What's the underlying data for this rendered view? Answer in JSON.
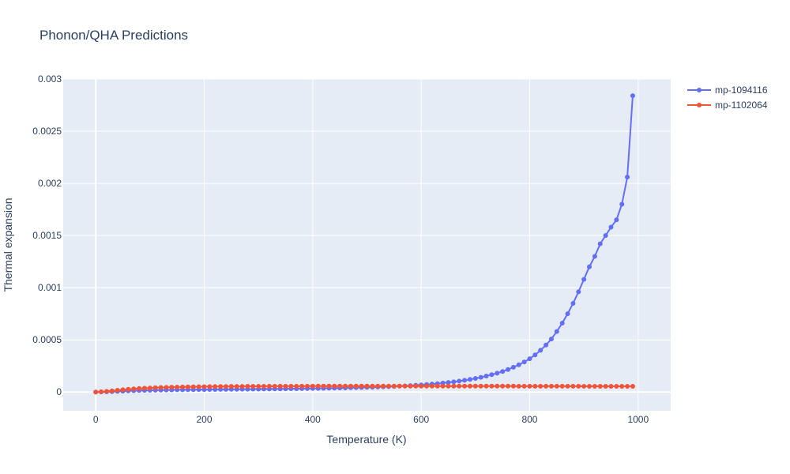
{
  "chart_data": {
    "type": "line",
    "title": "Phonon/QHA Predictions",
    "xlabel": "Temperature (K)",
    "ylabel": "Thermal expansion",
    "xlim": [
      -60,
      1060
    ],
    "ylim": [
      -0.00018,
      0.003
    ],
    "x_ticks": [
      0,
      200,
      400,
      600,
      800,
      1000
    ],
    "x_tick_labels": [
      "0",
      "200",
      "400",
      "600",
      "800",
      "1000"
    ],
    "y_ticks": [
      0,
      0.0005,
      0.001,
      0.0015,
      0.002,
      0.0025,
      0.003
    ],
    "y_tick_labels": [
      "0",
      "0.0005",
      "0.001",
      "0.0015",
      "0.002",
      "0.0025",
      "0.003"
    ],
    "grid": true,
    "legend_position": "top-right",
    "x": [
      0,
      10,
      20,
      30,
      40,
      50,
      60,
      70,
      80,
      90,
      100,
      110,
      120,
      130,
      140,
      150,
      160,
      170,
      180,
      190,
      200,
      210,
      220,
      230,
      240,
      250,
      260,
      270,
      280,
      290,
      300,
      310,
      320,
      330,
      340,
      350,
      360,
      370,
      380,
      390,
      400,
      410,
      420,
      430,
      440,
      450,
      460,
      470,
      480,
      490,
      500,
      510,
      520,
      530,
      540,
      550,
      560,
      570,
      580,
      590,
      600,
      610,
      620,
      630,
      640,
      650,
      660,
      670,
      680,
      690,
      700,
      710,
      720,
      730,
      740,
      750,
      760,
      770,
      780,
      790,
      800,
      810,
      820,
      830,
      840,
      850,
      860,
      870,
      880,
      890,
      900,
      910,
      920,
      930,
      940,
      950,
      960,
      970,
      980,
      990
    ],
    "series": [
      {
        "name": "mp-1094116",
        "color": "#636efa",
        "values": [
          0,
          5e-07,
          2e-06,
          4e-06,
          6.5e-06,
          8.5e-06,
          1.1e-05,
          1.28e-05,
          1.45e-05,
          1.6e-05,
          1.72e-05,
          1.82e-05,
          1.91e-05,
          1.99e-05,
          2.06e-05,
          2.12e-05,
          2.18e-05,
          2.23e-05,
          2.28e-05,
          2.33e-05,
          2.38e-05,
          2.42e-05,
          2.47e-05,
          2.51e-05,
          2.56e-05,
          2.6e-05,
          2.65e-05,
          2.69e-05,
          2.74e-05,
          2.79e-05,
          2.84e-05,
          2.89e-05,
          2.94e-05,
          3e-05,
          3.05e-05,
          3.11e-05,
          3.17e-05,
          3.24e-05,
          3.3e-05,
          3.37e-05,
          3.45e-05,
          3.52e-05,
          3.61e-05,
          3.69e-05,
          3.79e-05,
          3.88e-05,
          3.99e-05,
          4.1e-05,
          4.22e-05,
          4.35e-05,
          4.49e-05,
          4.65e-05,
          4.81e-05,
          4.99e-05,
          5.19e-05,
          5.4e-05,
          5.63e-05,
          5.89e-05,
          6.17e-05,
          6.48e-05,
          6.82e-05,
          7.19e-05,
          7.61e-05,
          8.07e-05,
          8.57e-05,
          9.14e-05,
          9.77e-05,
          0.000105,
          0.000112,
          0.000121,
          0.00013,
          0.000141,
          0.000153,
          0.000166,
          0.000181,
          0.000197,
          0.000216,
          0.000237,
          0.000261,
          0.000288,
          0.000319,
          0.000356,
          0.0004,
          0.00045,
          0.000508,
          0.00058,
          0.00066,
          0.00075,
          0.00085,
          0.00096,
          0.00108,
          0.0012,
          0.0013,
          0.00142,
          0.0015,
          0.00158,
          0.00165,
          0.0018,
          0.00206,
          0.00284
        ]
      },
      {
        "name": "mp-1102064",
        "color": "#ef553b",
        "values": [
          0,
          2.5e-06,
          6.5e-06,
          1.1e-05,
          1.65e-05,
          2.15e-05,
          2.6e-05,
          3e-05,
          3.35e-05,
          3.65e-05,
          3.9e-05,
          4.12e-05,
          4.31e-05,
          4.47e-05,
          4.61e-05,
          4.73e-05,
          4.84e-05,
          4.93e-05,
          5.01e-05,
          5.08e-05,
          5.14e-05,
          5.19e-05,
          5.24e-05,
          5.28e-05,
          5.32e-05,
          5.36e-05,
          5.39e-05,
          5.42e-05,
          5.45e-05,
          5.47e-05,
          5.49e-05,
          5.51e-05,
          5.53e-05,
          5.55e-05,
          5.56e-05,
          5.57e-05,
          5.58e-05,
          5.59e-05,
          5.6e-05,
          5.61e-05,
          5.62e-05,
          5.63e-05,
          5.63e-05,
          5.64e-05,
          5.64e-05,
          5.65e-05,
          5.65e-05,
          5.65e-05,
          5.66e-05,
          5.66e-05,
          5.66e-05,
          5.66e-05,
          5.67e-05,
          5.67e-05,
          5.67e-05,
          5.67e-05,
          5.67e-05,
          5.67e-05,
          5.67e-05,
          5.67e-05,
          5.67e-05,
          5.67e-05,
          5.67e-05,
          5.67e-05,
          5.67e-05,
          5.66e-05,
          5.66e-05,
          5.66e-05,
          5.66e-05,
          5.65e-05,
          5.65e-05,
          5.65e-05,
          5.64e-05,
          5.64e-05,
          5.63e-05,
          5.63e-05,
          5.62e-05,
          5.62e-05,
          5.61e-05,
          5.61e-05,
          5.6e-05,
          5.59e-05,
          5.59e-05,
          5.58e-05,
          5.57e-05,
          5.56e-05,
          5.56e-05,
          5.55e-05,
          5.54e-05,
          5.53e-05,
          5.52e-05,
          5.51e-05,
          5.5e-05,
          5.49e-05,
          5.48e-05,
          5.47e-05,
          5.46e-05,
          5.45e-05,
          5.44e-05,
          5.43e-05
        ]
      }
    ]
  }
}
